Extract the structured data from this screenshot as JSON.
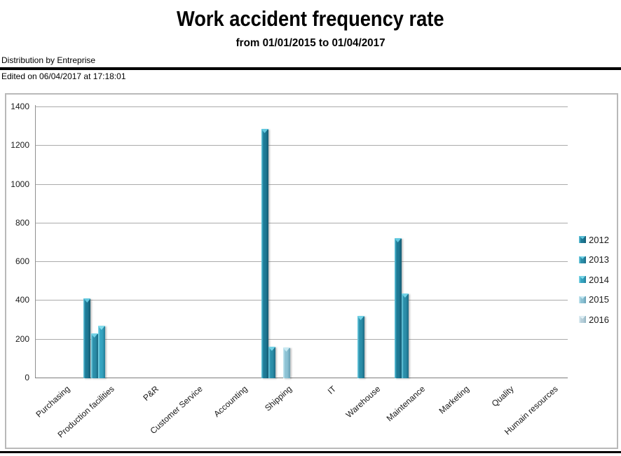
{
  "header": {
    "title": "Work accident frequency rate",
    "subtitle": "from 01/01/2015 to 01/04/2017",
    "distribution_label": "Distribution by Entreprise",
    "edited_label": "Edited on 06/04/2017 at 17:18:01"
  },
  "chart_data": {
    "type": "bar",
    "title": "Work accident frequency rate",
    "subtitle": "from 01/01/2015 to 01/04/2017",
    "categories": [
      "Purchasing",
      "Production facilities",
      "P&R",
      "Customer Service",
      "Accounting",
      "Shipping",
      "IT",
      "Warehouse",
      "Maintenance",
      "Marketing",
      "Quality",
      "Humain resources"
    ],
    "series": [
      {
        "name": "2012",
        "color": "#1E7A96",
        "color_light": "#63C9E0",
        "color_dark": "#145B72",
        "values": [
          0,
          410,
          0,
          0,
          0,
          1283,
          0,
          0,
          720,
          0,
          0,
          0
        ]
      },
      {
        "name": "2013",
        "color": "#2B8EA9",
        "color_light": "#73D2E6",
        "color_dark": "#1C6A84",
        "values": [
          0,
          228,
          0,
          0,
          0,
          158,
          0,
          320,
          435,
          0,
          0,
          0
        ]
      },
      {
        "name": "2014",
        "color": "#35A3C0",
        "color_light": "#84DCEC",
        "color_dark": "#237E98",
        "values": [
          0,
          268,
          0,
          0,
          0,
          0,
          0,
          0,
          0,
          0,
          0,
          0
        ]
      },
      {
        "name": "2015",
        "color": "#8CC2D4",
        "color_light": "#C8E9F2",
        "color_dark": "#67A0B4",
        "values": [
          0,
          0,
          0,
          0,
          0,
          155,
          0,
          0,
          0,
          0,
          0,
          0
        ]
      },
      {
        "name": "2016",
        "color": "#B7CFDA",
        "color_light": "#E4F2F7",
        "color_dark": "#93B4C1",
        "values": [
          0,
          0,
          0,
          0,
          0,
          0,
          0,
          0,
          0,
          0,
          0,
          0
        ]
      }
    ],
    "ylabel": "",
    "xlabel": "",
    "ylim": [
      0,
      1400
    ],
    "yticks": [
      0,
      200,
      400,
      600,
      800,
      1000,
      1200,
      1400
    ],
    "grid": true,
    "legend_position": "right"
  }
}
